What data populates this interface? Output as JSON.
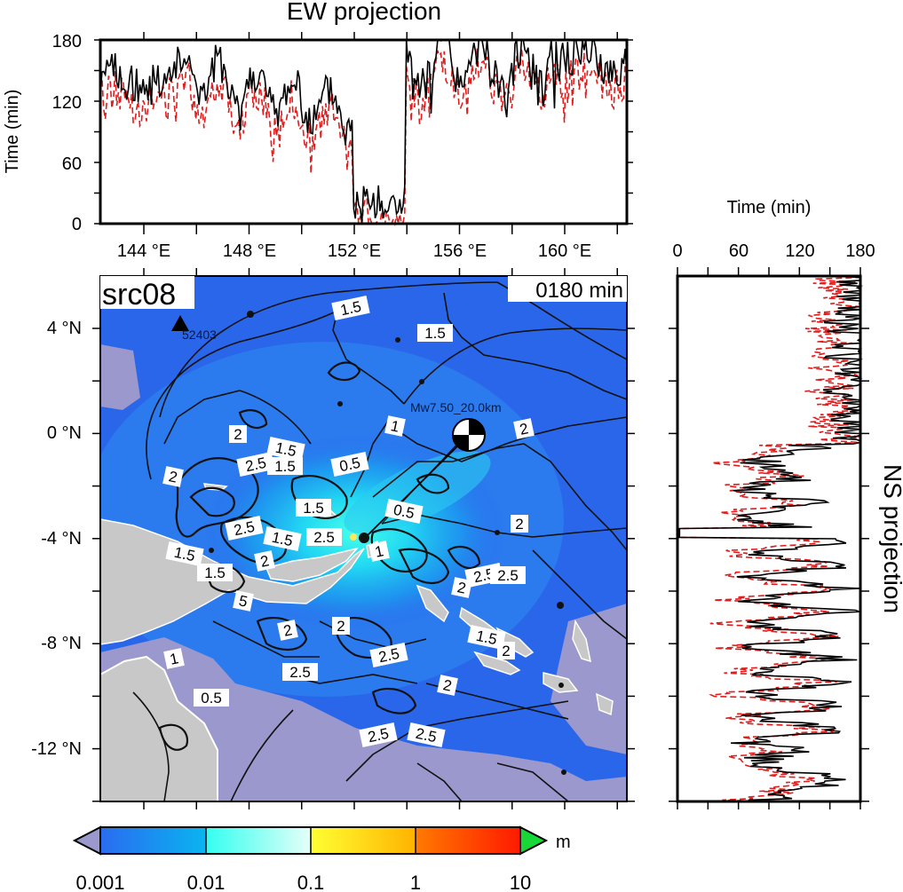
{
  "ew_panel": {
    "title": "EW projection",
    "ylabel": "Time (min)",
    "yticks": [
      "0",
      "60",
      "120",
      "180"
    ],
    "xticks": [
      "144 °E",
      "148 °E",
      "152 °E",
      "156 °E",
      "160 °E"
    ]
  },
  "ns_panel": {
    "title": "NS projection",
    "xlabel": "Time (min)",
    "xticks": [
      "0",
      "60",
      "120",
      "180"
    ]
  },
  "map": {
    "source_label": "src08",
    "time_label": "0180 min",
    "yticks": [
      "4 °N",
      "0 °N",
      "-4 °N",
      "-8 °N",
      "-12 °N"
    ],
    "station_label": "52403",
    "event_label": "Mw7.50_20.0km",
    "contour_labels": [
      "1.5",
      "1.5",
      "1",
      "2",
      "2",
      "1.5",
      "2.5",
      "1.5",
      "2",
      "0.5",
      "1.5",
      "0.5",
      "2.5",
      "2",
      "1.5",
      "1",
      "2.5",
      "1.5",
      "2",
      "1.5",
      "2",
      "2.5",
      "2.5",
      "5",
      "2",
      "2",
      "1.5",
      "2.5",
      "2.5",
      "2",
      "1",
      "0.5",
      "2.5",
      "2.5",
      "2"
    ]
  },
  "colorbar": {
    "ticks": [
      "0.001",
      "0.01",
      "0.1",
      "1",
      "10"
    ],
    "unit": "m",
    "colors": [
      "#2a6cf0",
      "#0ab4f0",
      "#33fff0",
      "#ffff33",
      "#ff9d00",
      "#ff3300",
      "#18d838",
      "#9a98cc"
    ]
  },
  "colors": {
    "ocean": "#2a66ea",
    "land": "#c8c8c8",
    "shallow": "#9a98cc",
    "series_black": "#000000",
    "series_red": "#e01c1c"
  }
}
